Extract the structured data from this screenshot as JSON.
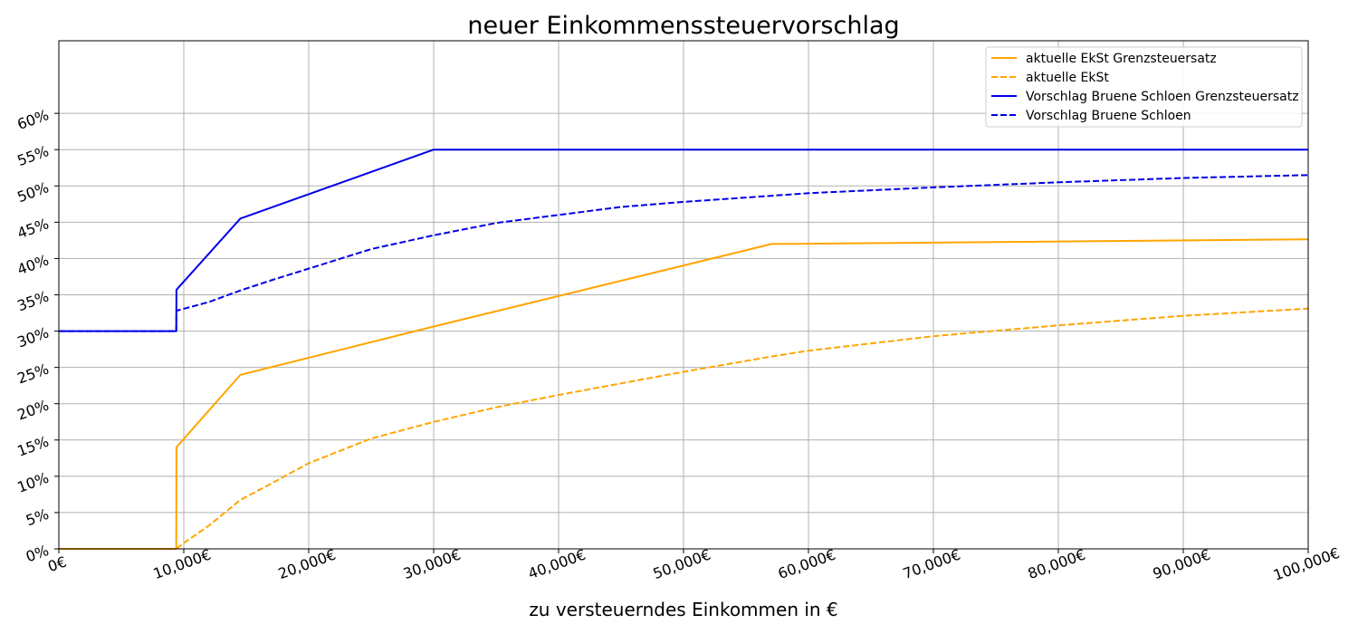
{
  "chart_data": {
    "type": "line",
    "title": "neuer Einkommenssteuervorschlag",
    "xlabel": "zu versteuerndes Einkommen in €",
    "ylabel": "",
    "xlim": [
      0,
      100000
    ],
    "ylim": [
      0,
      0.7
    ],
    "grid": true,
    "legend_position": "top-right",
    "x_ticks": [
      0,
      10000,
      20000,
      30000,
      40000,
      50000,
      60000,
      70000,
      80000,
      90000,
      100000
    ],
    "x_tick_labels": [
      "0€",
      "10,000€",
      "20,000€",
      "30,000€",
      "40,000€",
      "50,000€",
      "60,000€",
      "70,000€",
      "80,000€",
      "90,000€",
      "100,000€"
    ],
    "y_ticks": [
      0,
      0.05,
      0.1,
      0.15,
      0.2,
      0.25,
      0.3,
      0.35,
      0.4,
      0.45,
      0.5,
      0.55,
      0.6
    ],
    "y_tick_labels": [
      "0%",
      "5%",
      "10%",
      "15%",
      "20%",
      "25%",
      "30%",
      "35%",
      "40%",
      "45%",
      "50%",
      "55%",
      "60%"
    ],
    "series": [
      {
        "name": "aktuelle EkSt Grenzsteuersatz",
        "color": "#ffa500",
        "dash": "solid",
        "points": [
          [
            0,
            0
          ],
          [
            9400,
            0
          ],
          [
            9410,
            0.14
          ],
          [
            14530,
            0.2397
          ],
          [
            30000,
            0.3063
          ],
          [
            57052,
            0.42
          ],
          [
            100000,
            0.4265
          ]
        ]
      },
      {
        "name": "aktuelle EkSt",
        "color": "#ffa500",
        "dash": "dashed",
        "points": [
          [
            0,
            0
          ],
          [
            9400,
            0
          ],
          [
            10000,
            0.008
          ],
          [
            12000,
            0.032
          ],
          [
            14530,
            0.0674
          ],
          [
            17000,
            0.09
          ],
          [
            20000,
            0.118
          ],
          [
            25000,
            0.152
          ],
          [
            30000,
            0.175
          ],
          [
            35000,
            0.195
          ],
          [
            40000,
            0.212
          ],
          [
            45000,
            0.228
          ],
          [
            50000,
            0.244
          ],
          [
            57052,
            0.265
          ],
          [
            60000,
            0.273
          ],
          [
            70000,
            0.293
          ],
          [
            80000,
            0.308
          ],
          [
            90000,
            0.321
          ],
          [
            100000,
            0.331
          ]
        ]
      },
      {
        "name": "Vorschlag Bruene Schloen Grenzsteuersatz",
        "color": "#0000e6",
        "dash": "solid",
        "points": [
          [
            0,
            0.3
          ],
          [
            9400,
            0.3
          ],
          [
            9410,
            0.357
          ],
          [
            14530,
            0.455
          ],
          [
            30000,
            0.55
          ],
          [
            100000,
            0.55
          ]
        ]
      },
      {
        "name": "Vorschlag Bruene Schloen",
        "color": "#0000e6",
        "dash": "dashed",
        "points": [
          [
            0,
            0.3
          ],
          [
            9400,
            0.3
          ],
          [
            9410,
            0.328
          ],
          [
            12000,
            0.34
          ],
          [
            14530,
            0.356
          ],
          [
            17000,
            0.37
          ],
          [
            20000,
            0.386
          ],
          [
            25000,
            0.413
          ],
          [
            30000,
            0.432
          ],
          [
            35000,
            0.449
          ],
          [
            40000,
            0.46
          ],
          [
            45000,
            0.471
          ],
          [
            50000,
            0.478
          ],
          [
            55000,
            0.484
          ],
          [
            60000,
            0.49
          ],
          [
            70000,
            0.498
          ],
          [
            80000,
            0.505
          ],
          [
            90000,
            0.511
          ],
          [
            100000,
            0.515
          ]
        ]
      }
    ]
  }
}
